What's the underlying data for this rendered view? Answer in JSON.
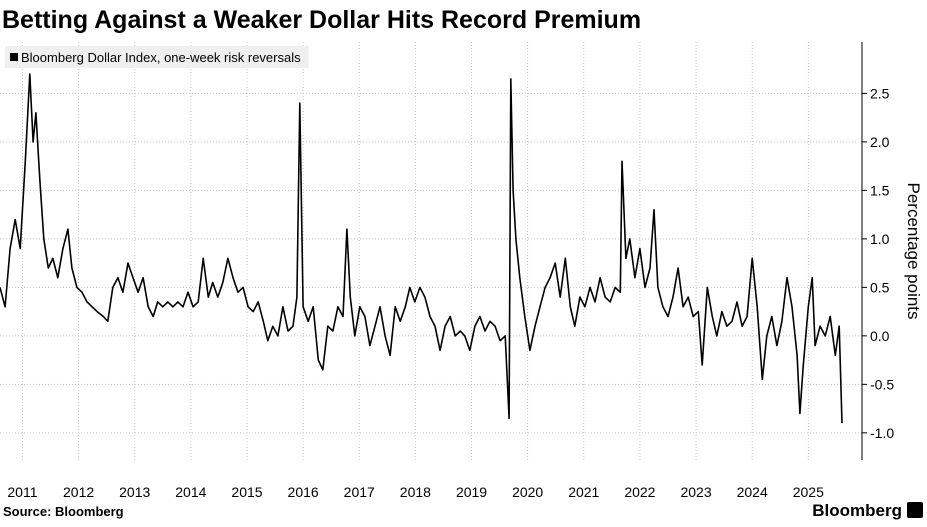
{
  "chart_data": {
    "type": "line",
    "title": "Betting Against a Weaker Dollar Hits Record Premium",
    "y_label": "Percentage points",
    "source": "Source: Bloomberg",
    "brand": "Bloomberg",
    "grid": true,
    "legend_position": "upper left",
    "xlim": [
      2011.1,
      2026.1
    ],
    "ylim": [
      -1.28,
      3.03
    ],
    "xticks": [
      {
        "value": 2011.5,
        "label": "2011"
      },
      {
        "value": 2012.5,
        "label": "2012"
      },
      {
        "value": 2013.5,
        "label": "2013"
      },
      {
        "value": 2014.5,
        "label": "2014"
      },
      {
        "value": 2015.5,
        "label": "2015"
      },
      {
        "value": 2016.5,
        "label": "2016"
      },
      {
        "value": 2017.5,
        "label": "2017"
      },
      {
        "value": 2018.5,
        "label": "2018"
      },
      {
        "value": 2019.5,
        "label": "2019"
      },
      {
        "value": 2020.5,
        "label": "2020"
      },
      {
        "value": 2021.5,
        "label": "2021"
      },
      {
        "value": 2022.5,
        "label": "2022"
      },
      {
        "value": 2023.5,
        "label": "2023"
      },
      {
        "value": 2024.5,
        "label": "2024"
      },
      {
        "value": 2025.5,
        "label": "2025"
      }
    ],
    "yticks": [
      {
        "value": -1,
        "label": "-1.0"
      },
      -0.5,
      {
        "value": 0,
        "label": "0.0"
      },
      0.5,
      {
        "value": 1,
        "label": "1.0"
      },
      1.5,
      {
        "value": 2,
        "label": "2.0"
      },
      2.5
    ],
    "x": [
      2011.1,
      2011.19,
      2011.28,
      2011.37,
      2011.46,
      2011.55,
      2011.63,
      2011.69,
      2011.74,
      2011.81,
      2011.88,
      2011.96,
      2012.04,
      2012.13,
      2012.22,
      2012.31,
      2012.38,
      2012.47,
      2012.56,
      2012.65,
      2012.74,
      2012.83,
      2012.94,
      2013.02,
      2013.11,
      2013.2,
      2013.29,
      2013.38,
      2013.47,
      2013.56,
      2013.65,
      2013.74,
      2013.83,
      2013.91,
      2014.0,
      2014.09,
      2014.18,
      2014.27,
      2014.36,
      2014.45,
      2014.54,
      2014.63,
      2014.72,
      2014.81,
      2014.89,
      2014.98,
      2015.07,
      2015.16,
      2015.25,
      2015.34,
      2015.43,
      2015.52,
      2015.61,
      2015.7,
      2015.79,
      2015.87,
      2015.96,
      2016.05,
      2016.14,
      2016.23,
      2016.32,
      2016.39,
      2016.44,
      2016.5,
      2016.59,
      2016.68,
      2016.77,
      2016.85,
      2016.94,
      2017.03,
      2017.12,
      2017.21,
      2017.28,
      2017.34,
      2017.42,
      2017.51,
      2017.6,
      2017.69,
      2017.78,
      2017.87,
      2017.96,
      2018.05,
      2018.14,
      2018.23,
      2018.32,
      2018.4,
      2018.49,
      2018.58,
      2018.67,
      2018.76,
      2018.85,
      2018.94,
      2019.03,
      2019.12,
      2019.21,
      2019.3,
      2019.38,
      2019.47,
      2019.56,
      2019.65,
      2019.74,
      2019.83,
      2019.92,
      2020.01,
      2020.1,
      2020.17,
      2020.2,
      2020.24,
      2020.29,
      2020.36,
      2020.45,
      2020.54,
      2020.63,
      2020.72,
      2020.81,
      2020.9,
      2020.99,
      2021.08,
      2021.17,
      2021.26,
      2021.34,
      2021.43,
      2021.52,
      2021.61,
      2021.7,
      2021.79,
      2021.88,
      2021.97,
      2022.06,
      2022.15,
      2022.18,
      2022.25,
      2022.32,
      2022.41,
      2022.5,
      2022.59,
      2022.68,
      2022.75,
      2022.82,
      2022.91,
      2023.0,
      2023.09,
      2023.18,
      2023.27,
      2023.36,
      2023.45,
      2023.54,
      2023.61,
      2023.7,
      2023.79,
      2023.87,
      2023.96,
      2024.05,
      2024.14,
      2024.23,
      2024.32,
      2024.41,
      2024.5,
      2024.59,
      2024.68,
      2024.76,
      2024.85,
      2024.94,
      2025.03,
      2025.12,
      2025.21,
      2025.3,
      2025.35,
      2025.41,
      2025.5,
      2025.57,
      2025.62,
      2025.71,
      2025.8,
      2025.89,
      2025.98,
      2026.05,
      2026.1
    ],
    "series": [
      {
        "name": "Bloomberg Dollar Index, one-week risk reversals",
        "color": "#000000",
        "values": [
          0.5,
          0.3,
          0.9,
          1.2,
          0.9,
          1.8,
          2.7,
          2.0,
          2.3,
          1.6,
          1.0,
          0.7,
          0.8,
          0.6,
          0.9,
          1.1,
          0.7,
          0.5,
          0.45,
          0.35,
          0.3,
          0.25,
          0.2,
          0.15,
          0.5,
          0.6,
          0.45,
          0.75,
          0.6,
          0.45,
          0.6,
          0.3,
          0.2,
          0.35,
          0.3,
          0.35,
          0.3,
          0.35,
          0.3,
          0.45,
          0.3,
          0.35,
          0.8,
          0.4,
          0.55,
          0.4,
          0.55,
          0.8,
          0.6,
          0.45,
          0.5,
          0.3,
          0.25,
          0.35,
          0.15,
          -0.05,
          0.1,
          0.0,
          0.3,
          0.05,
          0.1,
          0.4,
          2.4,
          0.3,
          0.15,
          0.3,
          -0.25,
          -0.35,
          0.1,
          0.05,
          0.3,
          0.2,
          1.1,
          0.4,
          0.0,
          0.3,
          0.2,
          -0.1,
          0.1,
          0.3,
          0.0,
          -0.2,
          0.3,
          0.15,
          0.3,
          0.5,
          0.35,
          0.5,
          0.4,
          0.2,
          0.1,
          -0.15,
          0.1,
          0.2,
          0.0,
          0.05,
          0.0,
          -0.15,
          0.1,
          0.2,
          0.05,
          0.15,
          0.1,
          -0.05,
          0.0,
          -0.85,
          2.65,
          1.5,
          1.0,
          0.6,
          0.2,
          -0.15,
          0.1,
          0.3,
          0.5,
          0.6,
          0.75,
          0.4,
          0.8,
          0.3,
          0.1,
          0.4,
          0.3,
          0.5,
          0.35,
          0.6,
          0.4,
          0.35,
          0.5,
          0.45,
          1.8,
          0.8,
          1.0,
          0.6,
          0.9,
          0.5,
          0.7,
          1.3,
          0.5,
          0.3,
          0.2,
          0.4,
          0.7,
          0.3,
          0.4,
          0.2,
          0.25,
          -0.3,
          0.5,
          0.2,
          0.0,
          0.25,
          0.1,
          0.15,
          0.35,
          0.1,
          0.2,
          0.8,
          0.3,
          -0.45,
          0.0,
          0.2,
          -0.1,
          0.15,
          0.6,
          0.3,
          -0.2,
          -0.8,
          -0.3,
          0.3,
          0.6,
          -0.1,
          0.1,
          0.0,
          0.2,
          -0.2,
          0.1,
          -0.9
        ]
      }
    ]
  }
}
